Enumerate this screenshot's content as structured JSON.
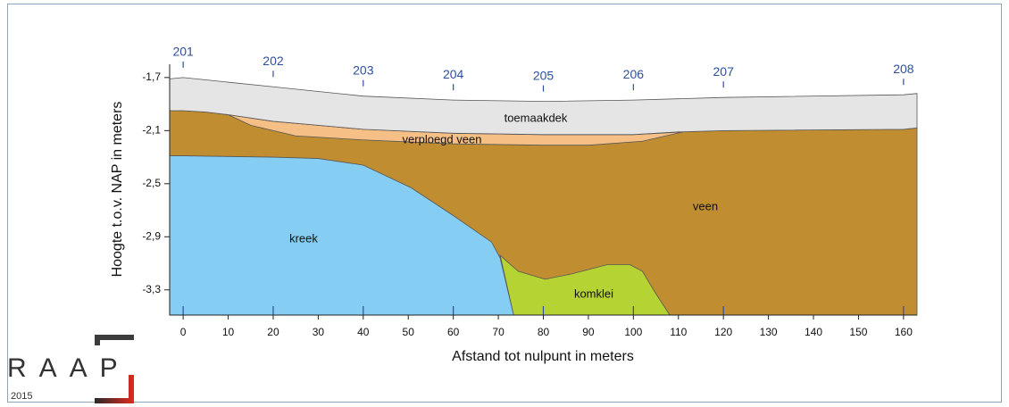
{
  "chart_data": {
    "type": "profile",
    "xlabel": "Afstand tot nulpunt in meters",
    "ylabel": "Hoogte t.o.v. NAP in meters",
    "xlim": [
      -3,
      163
    ],
    "ylim": [
      -3.49,
      -1.6
    ],
    "xticks": [
      0,
      10,
      20,
      30,
      40,
      50,
      60,
      70,
      80,
      90,
      100,
      110,
      120,
      130,
      140,
      150,
      160
    ],
    "yticks": [
      {
        "value": -1.7,
        "label": "-1,7"
      },
      {
        "value": -2.1,
        "label": "-2,1"
      },
      {
        "value": -2.5,
        "label": "-2,5"
      },
      {
        "value": -2.9,
        "label": "-2,9"
      },
      {
        "value": -3.3,
        "label": "-3,3"
      }
    ],
    "layers": [
      {
        "name": "veen",
        "color": "#c08e31",
        "x": [
          -3,
          0,
          5,
          10,
          20,
          40,
          60,
          80,
          100,
          110,
          120,
          160,
          163,
          163,
          -3
        ],
        "y": [
          -1.95,
          -1.95,
          -1.96,
          -1.98,
          -2.03,
          -2.09,
          -2.12,
          -2.13,
          -2.13,
          -2.11,
          -2.1,
          -2.09,
          -2.08,
          -3.49,
          -3.49
        ]
      },
      {
        "name": "verploegd veen",
        "color": "#f6bf86",
        "x": [
          10,
          20,
          40,
          60,
          80,
          100,
          111,
          102,
          90,
          80,
          60,
          40,
          25,
          15
        ],
        "y": [
          -1.98,
          -2.03,
          -2.09,
          -2.12,
          -2.13,
          -2.13,
          -2.11,
          -2.18,
          -2.21,
          -2.21,
          -2.2,
          -2.17,
          -2.14,
          -2.06
        ]
      },
      {
        "name": "kreek",
        "color": "#86cdf3",
        "x": [
          -3,
          0,
          20,
          30,
          40,
          50.6,
          60,
          68.5,
          70.4,
          73.4,
          -3
        ],
        "y": [
          -2.29,
          -2.29,
          -2.3,
          -2.31,
          -2.36,
          -2.53,
          -2.74,
          -2.94,
          -3.06,
          -3.49,
          -3.49
        ]
      },
      {
        "name": "komklei",
        "color": "#b6d334",
        "x": [
          70.4,
          74.4,
          80.4,
          86.3,
          94.2,
          99.2,
          102,
          105,
          108.1,
          73.4
        ],
        "y": [
          -3.04,
          -3.16,
          -3.22,
          -3.18,
          -3.11,
          -3.11,
          -3.16,
          -3.33,
          -3.49,
          -3.49
        ]
      },
      {
        "name": "toemaakdek",
        "color": "#e5e5e5",
        "x": [
          -3,
          0,
          20,
          40,
          60,
          80.4,
          100,
          120,
          160,
          163,
          163,
          160,
          120,
          110,
          100,
          80,
          60,
          40,
          20,
          10,
          5,
          0,
          -3
        ],
        "y": [
          -1.71,
          -1.7,
          -1.77,
          -1.84,
          -1.87,
          -1.88,
          -1.87,
          -1.85,
          -1.83,
          -1.82,
          -2.08,
          -2.09,
          -2.1,
          -2.11,
          -2.13,
          -2.13,
          -2.12,
          -2.09,
          -2.03,
          -1.98,
          -1.96,
          -1.95,
          -1.95
        ]
      }
    ],
    "boreholes": {
      "names": [
        "201",
        "202",
        "203",
        "204",
        "205",
        "206",
        "207",
        "208"
      ],
      "x": [
        0,
        20,
        40,
        60,
        80,
        100,
        120,
        160
      ]
    },
    "logo": {
      "text": "RAAP",
      "year": "2015"
    }
  }
}
